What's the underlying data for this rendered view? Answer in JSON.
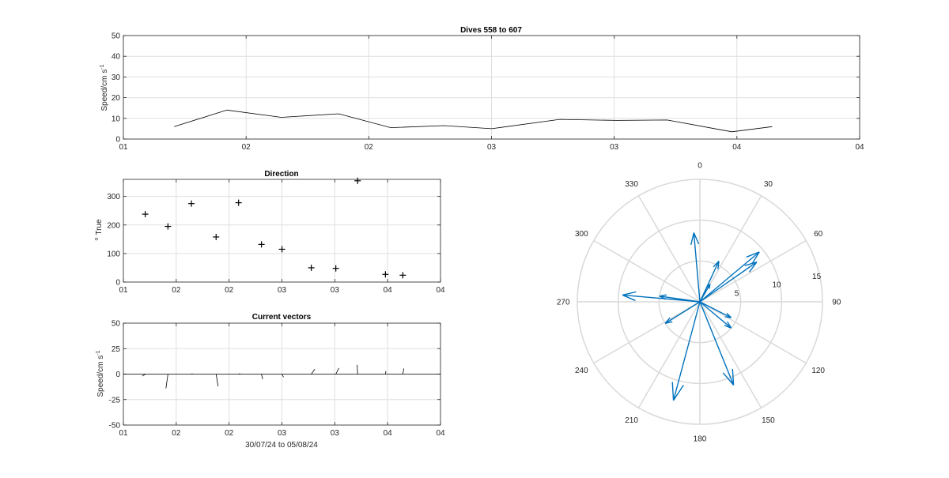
{
  "chart_data": [
    {
      "id": "speed",
      "type": "line",
      "title": "Dives 558 to 607",
      "ylabel": "Speed/cm s",
      "ylabel_sup": "-1",
      "xlabel": "",
      "ylim": [
        0,
        50
      ],
      "yticks": [
        0,
        10,
        20,
        30,
        40,
        50
      ],
      "xlim": [
        0,
        1
      ],
      "xticks": [
        {
          "pos": 0,
          "label": "01"
        },
        {
          "pos": 0.1667,
          "label": "02"
        },
        {
          "pos": 0.3333,
          "label": "02"
        },
        {
          "pos": 0.5,
          "label": "03"
        },
        {
          "pos": 0.6667,
          "label": "03"
        },
        {
          "pos": 0.8333,
          "label": "04"
        },
        {
          "pos": 1,
          "label": "04"
        }
      ],
      "grid": true,
      "color": "#000000",
      "x": [
        0.069,
        0.1406,
        0.2146,
        0.2924,
        0.3633,
        0.4354,
        0.5002,
        0.5926,
        0.67,
        0.7387,
        0.8264,
        0.8812
      ],
      "y": [
        6,
        14,
        10.5,
        12.2,
        5.5,
        6.5,
        5,
        9.5,
        9,
        9.2,
        3.5,
        6
      ]
    },
    {
      "id": "direction",
      "type": "scatter",
      "title": "Direction",
      "ylabel": "True",
      "ylabel_pre": "o",
      "xlabel": "",
      "ylim": [
        0,
        360
      ],
      "yticks": [
        0,
        100,
        200,
        300
      ],
      "xlim": [
        0,
        1
      ],
      "xticks": [
        {
          "pos": 0,
          "label": "01"
        },
        {
          "pos": 0.1667,
          "label": "02"
        },
        {
          "pos": 0.3333,
          "label": "02"
        },
        {
          "pos": 0.5,
          "label": "03"
        },
        {
          "pos": 0.6667,
          "label": "03"
        },
        {
          "pos": 0.8333,
          "label": "04"
        },
        {
          "pos": 1,
          "label": "04"
        }
      ],
      "grid": true,
      "marker": "+",
      "color": "#000000",
      "x": [
        0.069,
        0.1406,
        0.2146,
        0.2924,
        0.3633,
        0.4354,
        0.5002,
        0.5926,
        0.67,
        0.7387,
        0.8264,
        0.8812
      ],
      "y": [
        238,
        195,
        275,
        158,
        278,
        132,
        115,
        50,
        48,
        355,
        27,
        24
      ]
    },
    {
      "id": "vectors",
      "type": "line",
      "title": "Current vectors",
      "ylabel": "Speed/cm s",
      "ylabel_sup": "-1",
      "xlabel": "30/07/24 to 05/08/24",
      "ylim": [
        -50,
        50
      ],
      "yticks": [
        -50,
        -25,
        0,
        25,
        50
      ],
      "xlim": [
        0,
        1
      ],
      "xticks": [
        {
          "pos": 0,
          "label": "01"
        },
        {
          "pos": 0.1667,
          "label": "02"
        },
        {
          "pos": 0.3333,
          "label": "02"
        },
        {
          "pos": 0.5,
          "label": "03"
        },
        {
          "pos": 0.6667,
          "label": "03"
        },
        {
          "pos": 0.8333,
          "label": "04"
        },
        {
          "pos": 1,
          "label": "04"
        }
      ],
      "grid": true,
      "color": "#000000",
      "zero_line": true,
      "vectors": [
        {
          "x": 0.069,
          "u": -3.0,
          "v": -2.0
        },
        {
          "x": 0.1406,
          "u": -2.0,
          "v": -14.0
        },
        {
          "x": 0.2146,
          "u": 1.0,
          "v": 0.5
        },
        {
          "x": 0.2924,
          "u": 2.0,
          "v": -12.0
        },
        {
          "x": 0.3633,
          "u": 1.5,
          "v": 0.5
        },
        {
          "x": 0.4354,
          "u": 1.2,
          "v": -5.0
        },
        {
          "x": 0.5002,
          "u": 1.5,
          "v": -3.0
        },
        {
          "x": 0.5926,
          "u": 3.5,
          "v": 5.0
        },
        {
          "x": 0.67,
          "u": 3.0,
          "v": 6.0
        },
        {
          "x": 0.7387,
          "u": -0.5,
          "v": 9.0
        },
        {
          "x": 0.8264,
          "u": 0.5,
          "v": 3.0
        },
        {
          "x": 0.8812,
          "u": 1.0,
          "v": 5.5
        }
      ]
    },
    {
      "id": "compass",
      "type": "polar",
      "title": "",
      "rlim": [
        0,
        15
      ],
      "rticks": [
        5,
        10,
        15
      ],
      "angle_ticks": [
        0,
        30,
        60,
        90,
        120,
        150,
        180,
        210,
        240,
        270,
        300,
        330
      ],
      "color": "#0072BD",
      "arrows": [
        {
          "theta": 355,
          "r": 8.5
        },
        {
          "theta": 25,
          "r": 5.5
        },
        {
          "theta": 30,
          "r": 2.5
        },
        {
          "theta": 50,
          "r": 9.5
        },
        {
          "theta": 55,
          "r": 8.5
        },
        {
          "theta": 117,
          "r": 4.3
        },
        {
          "theta": 130,
          "r": 5.0
        },
        {
          "theta": 158,
          "r": 11.0
        },
        {
          "theta": 195,
          "r": 12.5
        },
        {
          "theta": 238,
          "r": 5.0
        },
        {
          "theta": 275,
          "r": 9.5
        },
        {
          "theta": 278,
          "r": 5.0
        }
      ]
    }
  ]
}
